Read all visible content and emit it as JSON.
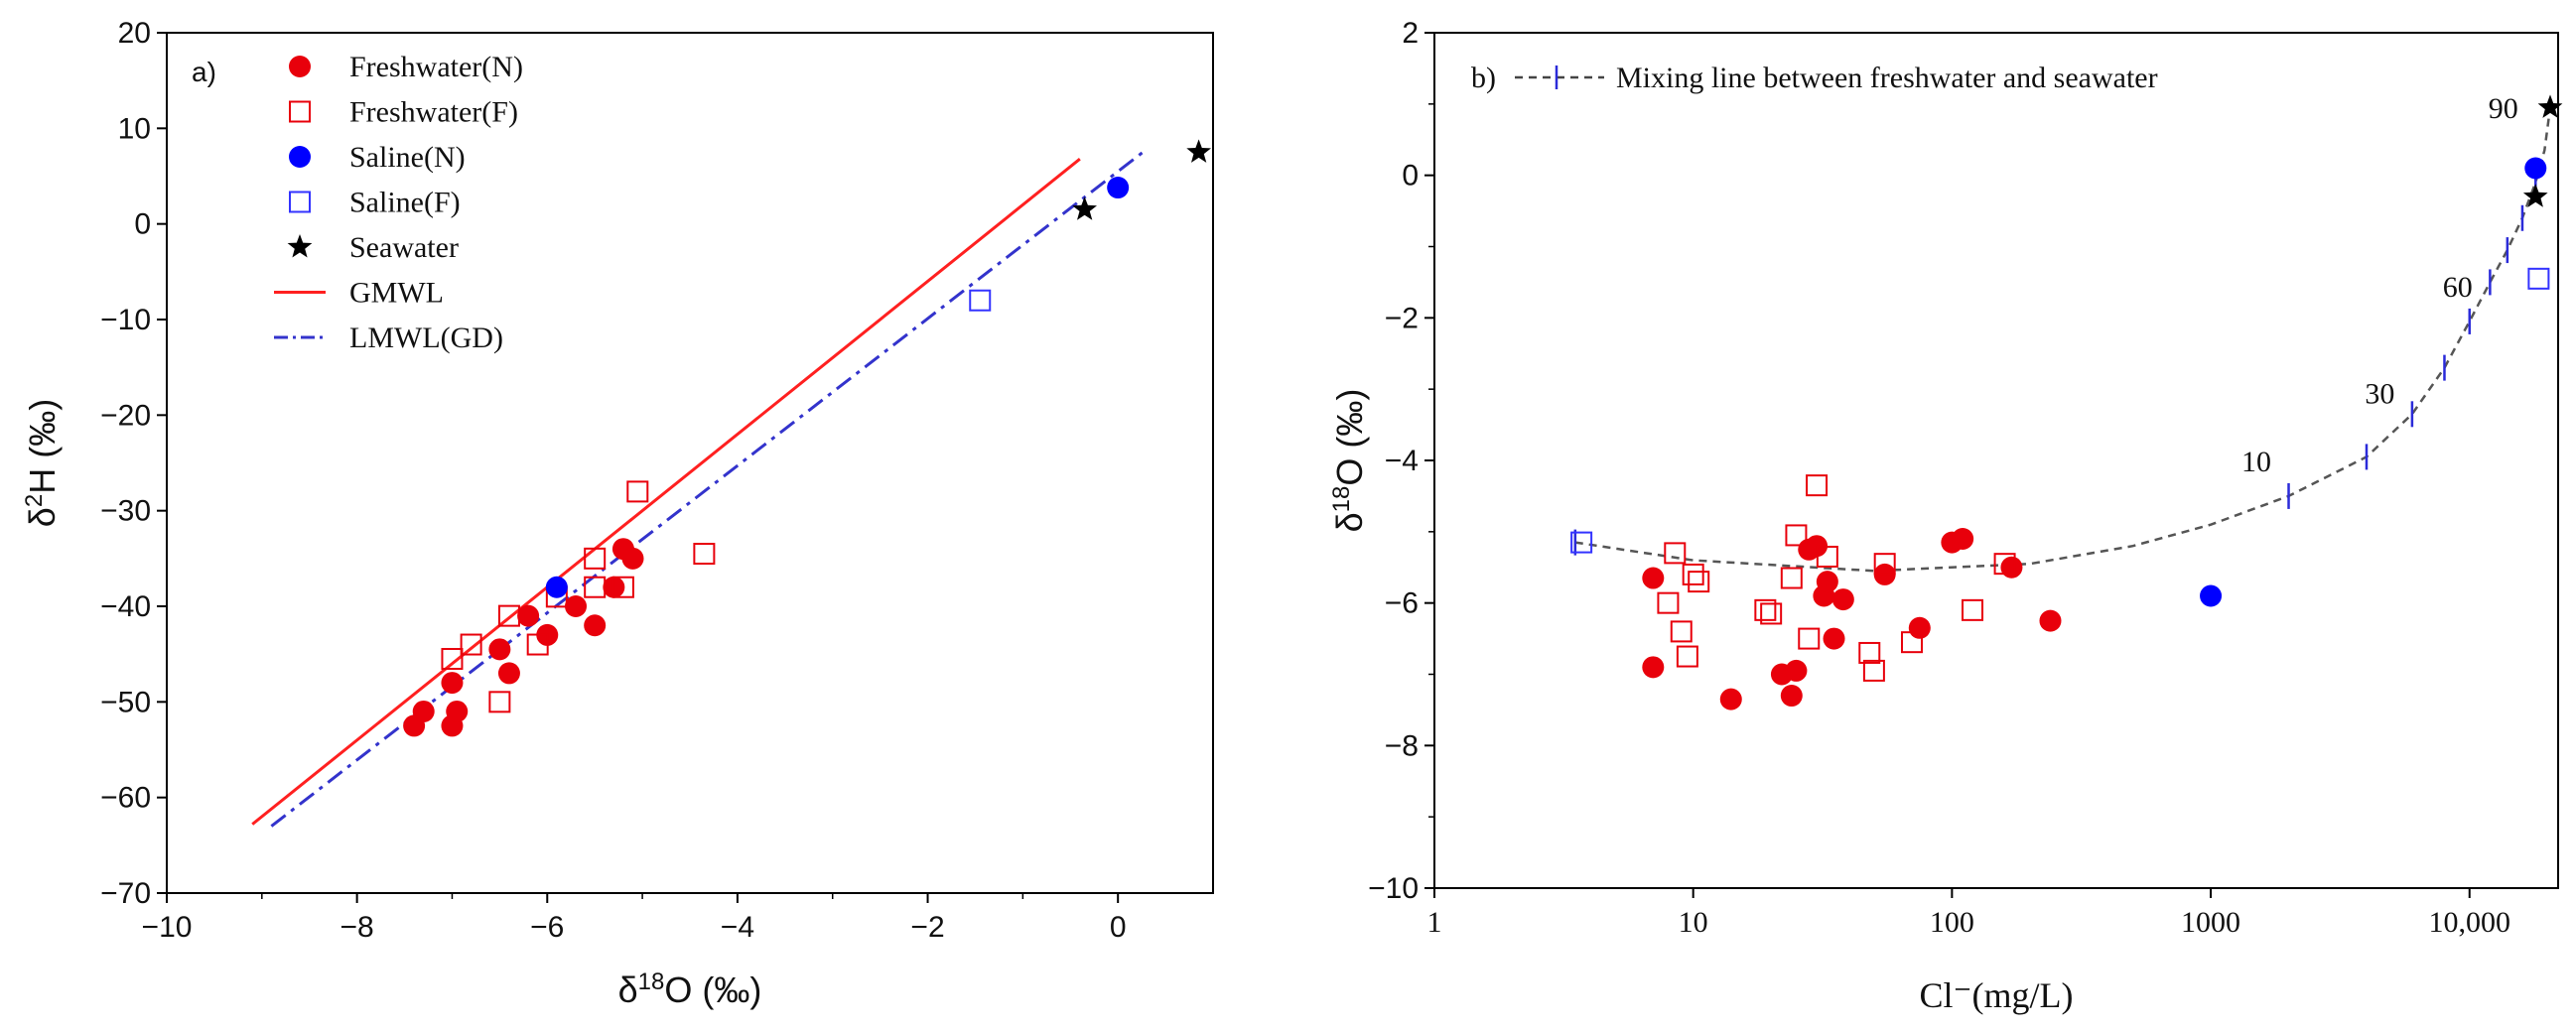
{
  "chart_data": [
    {
      "panel": "a)",
      "type": "scatter",
      "xlabel": "δ18O (‰)",
      "ylabel": "δ2H (‰)",
      "xlim": [
        -10,
        1
      ],
      "ylim": [
        -70,
        20
      ],
      "x_ticks": [
        -10,
        -8,
        -6,
        -4,
        -2,
        0
      ],
      "y_ticks": [
        -70,
        -60,
        -50,
        -40,
        -30,
        -20,
        -10,
        0,
        10,
        20
      ],
      "legend_position": "top-left",
      "legend": [
        {
          "label": "Freshwater(N)",
          "marker": "filled-circle",
          "color": "#e8000b"
        },
        {
          "label": "Freshwater(F)",
          "marker": "open-square",
          "color": "#e8000b"
        },
        {
          "label": "Saline(N)",
          "marker": "filled-circle",
          "color": "#0000ff"
        },
        {
          "label": "Saline(F)",
          "marker": "open-square",
          "color": "#3333ff"
        },
        {
          "label": "Seawater",
          "marker": "star",
          "color": "#000000"
        },
        {
          "label": "GMWL",
          "marker": "solid-line",
          "color": "#ff2020"
        },
        {
          "label": "LMWL(GD)",
          "marker": "dashdot-line",
          "color": "#3333cc"
        }
      ],
      "series": [
        {
          "name": "Freshwater(N)",
          "points": [
            [
              -7.4,
              -52.5
            ],
            [
              -7.3,
              -51
            ],
            [
              -7.0,
              -52.5
            ],
            [
              -6.95,
              -51
            ],
            [
              -7.0,
              -48
            ],
            [
              -6.5,
              -44.5
            ],
            [
              -6.4,
              -47
            ],
            [
              -6.2,
              -41
            ],
            [
              -6.0,
              -43
            ],
            [
              -5.7,
              -40
            ],
            [
              -5.5,
              -42
            ],
            [
              -5.3,
              -38
            ],
            [
              -5.2,
              -34
            ],
            [
              -5.1,
              -35
            ]
          ]
        },
        {
          "name": "Freshwater(F)",
          "points": [
            [
              -7.0,
              -45.5
            ],
            [
              -6.8,
              -44
            ],
            [
              -6.5,
              -50
            ],
            [
              -6.4,
              -41
            ],
            [
              -6.1,
              -44
            ],
            [
              -5.9,
              -39
            ],
            [
              -5.5,
              -38
            ],
            [
              -5.5,
              -35
            ],
            [
              -5.2,
              -38
            ],
            [
              -5.05,
              -28
            ],
            [
              -4.35,
              -34.5
            ]
          ]
        },
        {
          "name": "Saline(N)",
          "points": [
            [
              -5.9,
              -38
            ],
            [
              0.0,
              3.8
            ]
          ]
        },
        {
          "name": "Saline(F)",
          "points": [
            [
              -1.45,
              -8
            ]
          ]
        },
        {
          "name": "Seawater",
          "points": [
            [
              -0.35,
              1.5
            ],
            [
              0.85,
              7.5
            ]
          ]
        },
        {
          "name": "GMWL",
          "points": [
            [
              -9.1,
              -62.8
            ],
            [
              -0.4,
              6.8
            ]
          ]
        },
        {
          "name": "LMWL(GD)",
          "points": [
            [
              -8.9,
              -63
            ],
            [
              0.3,
              7.8
            ]
          ]
        }
      ]
    },
    {
      "panel": "b)",
      "type": "scatter",
      "xlabel": "Cl⁻(mg/L)",
      "ylabel": "δ18O (‰)",
      "x_scale": "log",
      "xlim": [
        1,
        22000
      ],
      "ylim": [
        -10,
        2
      ],
      "x_ticks": [
        1,
        10,
        100,
        1000,
        10000
      ],
      "x_tick_labels": [
        "1",
        "10",
        "100",
        "1000",
        "10,000"
      ],
      "y_ticks": [
        -10,
        -8,
        -6,
        -4,
        -2,
        0,
        2
      ],
      "legend_position": "top-left",
      "legend": [
        {
          "label": "Mixing line between freshwater and seawater",
          "marker": "dashed-line-with-ticks",
          "color": "#444444"
        }
      ],
      "mixing_labels": [
        {
          "text": "10",
          "x": 1500,
          "y": -4.15
        },
        {
          "text": "30",
          "x": 4500,
          "y": -3.2
        },
        {
          "text": "60",
          "x": 9000,
          "y": -1.7
        },
        {
          "text": "90",
          "x": 13500,
          "y": 0.8
        }
      ],
      "series": [
        {
          "name": "Freshwater(N)",
          "points": [
            [
              7,
              -5.65
            ],
            [
              7,
              -6.9
            ],
            [
              14,
              -7.35
            ],
            [
              22,
              -7.0
            ],
            [
              24,
              -7.3
            ],
            [
              25,
              -6.95
            ],
            [
              28,
              -5.25
            ],
            [
              30,
              -5.2
            ],
            [
              32,
              -5.9
            ],
            [
              33,
              -5.7
            ],
            [
              35,
              -6.5
            ],
            [
              38,
              -5.95
            ],
            [
              55,
              -5.6
            ],
            [
              75,
              -6.35
            ],
            [
              100,
              -5.15
            ],
            [
              110,
              -5.1
            ],
            [
              170,
              -5.5
            ],
            [
              240,
              -6.25
            ]
          ]
        },
        {
          "name": "Freshwater(F)",
          "points": [
            [
              8,
              -6.0
            ],
            [
              8.5,
              -5.3
            ],
            [
              9,
              -6.4
            ],
            [
              9.5,
              -6.75
            ],
            [
              10,
              -5.6
            ],
            [
              10.5,
              -5.7
            ],
            [
              19,
              -6.1
            ],
            [
              20,
              -6.15
            ],
            [
              24,
              -5.65
            ],
            [
              25,
              -5.05
            ],
            [
              28,
              -6.5
            ],
            [
              30,
              -4.35
            ],
            [
              33,
              -5.35
            ],
            [
              48,
              -6.7
            ],
            [
              50,
              -6.95
            ],
            [
              55,
              -5.45
            ],
            [
              70,
              -6.55
            ],
            [
              120,
              -6.1
            ],
            [
              160,
              -5.45
            ]
          ]
        },
        {
          "name": "Saline(N)",
          "points": [
            [
              1000,
              -5.9
            ],
            [
              18000,
              0.1
            ]
          ]
        },
        {
          "name": "Saline(F)",
          "points": [
            [
              3.7,
              -5.15
            ],
            [
              18500,
              -1.45
            ]
          ]
        },
        {
          "name": "Seawater",
          "points": [
            [
              18000,
              -0.3
            ],
            [
              20500,
              0.95
            ]
          ]
        },
        {
          "name": "Mixing line",
          "points": [
            [
              3.5,
              -5.15
            ],
            [
              10,
              -5.4
            ],
            [
              50,
              -5.55
            ],
            [
              200,
              -5.45
            ],
            [
              500,
              -5.2
            ],
            [
              1000,
              -4.9
            ],
            [
              2000,
              -4.5
            ],
            [
              4000,
              -3.95
            ],
            [
              6000,
              -3.35
            ],
            [
              8000,
              -2.7
            ],
            [
              10000,
              -2.05
            ],
            [
              12000,
              -1.5
            ],
            [
              14000,
              -1.05
            ],
            [
              16000,
              -0.6
            ],
            [
              18000,
              -0.1
            ],
            [
              19500,
              0.35
            ],
            [
              20500,
              0.95
            ]
          ]
        },
        {
          "name": "Mixing ticks",
          "points": [
            [
              3.5,
              -5.15
            ],
            [
              2000,
              -4.5
            ],
            [
              4000,
              -3.95
            ],
            [
              6000,
              -3.35
            ],
            [
              8000,
              -2.7
            ],
            [
              10000,
              -2.05
            ],
            [
              12000,
              -1.5
            ],
            [
              14000,
              -1.05
            ],
            [
              16000,
              -0.6
            ],
            [
              18000,
              -0.1
            ]
          ]
        }
      ]
    }
  ]
}
